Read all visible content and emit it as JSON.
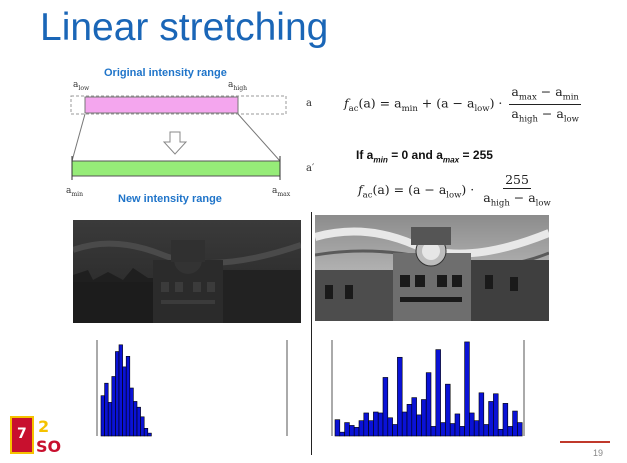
{
  "slide": {
    "title": "Linear stretching",
    "page_number": "19"
  },
  "diagram": {
    "original_label": "Original intensity range",
    "new_label": "New intensity range",
    "a_low": "a",
    "a_low_sub": "low",
    "a_high": "a",
    "a_high_sub": "high",
    "a_min": "a",
    "a_min_sub": "min",
    "a_max": "a",
    "a_max_sub": "max",
    "a_axis": "a",
    "a_prime": "a′"
  },
  "formula1": {
    "lhs": "f",
    "lhs_sub": "ac",
    "lhs_arg": "(a) = a",
    "t1_sub": "min",
    "t2": " + (a − a",
    "t2_sub": "low",
    "t2_end": ") ·",
    "num": "a",
    "num_sub": "max",
    "num_mid": " − a",
    "num_sub2": "min",
    "den": "a",
    "den_sub": "high",
    "den_mid": " − a",
    "den_sub2": "low"
  },
  "condition": {
    "prefix": "If a",
    "min_sub": "min",
    "eq0": " = 0    and     a",
    "max_sub": "max",
    "eq255": " = 255"
  },
  "formula2": {
    "lhs": "f",
    "lhs_sub": "ac",
    "lhs_arg": "(a) = (a − a",
    "t_sub": "low",
    "t_end": ") ·",
    "num": "255",
    "den": "a",
    "den_sub": "high",
    "den_mid": " − a",
    "den_sub2": "low"
  },
  "colors": {
    "title": "#1a66b7",
    "original_bar": "#f4a6ee",
    "new_bar": "#96ec78",
    "histogram": "#0a12d6",
    "accent_line": "#c0392b"
  },
  "icons": {
    "arrow": "down-arrow-icon",
    "logo": "institute-logo-icon"
  },
  "histogram_left": {
    "values": [
      0.42,
      0.55,
      0.35,
      0.62,
      0.88,
      0.95,
      0.72,
      0.83,
      0.5,
      0.36,
      0.3,
      0.2,
      0.08,
      0.03
    ]
  },
  "histogram_right": {
    "values": [
      0.17,
      0.04,
      0.14,
      0.11,
      0.09,
      0.16,
      0.24,
      0.16,
      0.25,
      0.24,
      0.61,
      0.19,
      0.12,
      0.82,
      0.25,
      0.33,
      0.4,
      0.22,
      0.38,
      0.66,
      0.1,
      0.9,
      0.14,
      0.54,
      0.13,
      0.23,
      0.1,
      0.98,
      0.24,
      0.16,
      0.45,
      0.12,
      0.36,
      0.44,
      0.07,
      0.34,
      0.1,
      0.26,
      0.14
    ]
  }
}
